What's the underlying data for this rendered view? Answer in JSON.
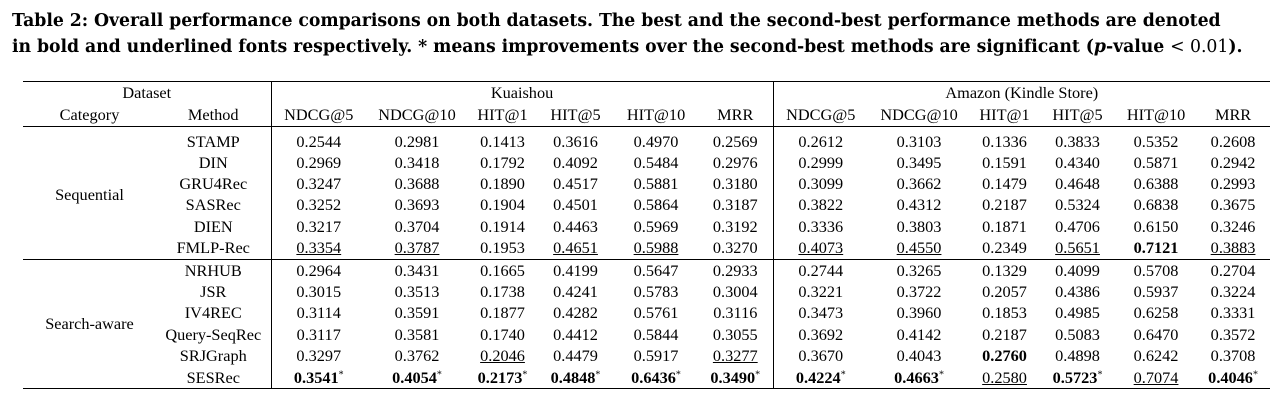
{
  "caption": {
    "label": "Table 2:",
    "text1": "Overall performance comparisons on both datasets. The best and the second-best performance methods are denoted",
    "text2a": "in bold and underlined fonts respectively. * means improvements over the second-best methods are significant (",
    "p": "p",
    "text2b": "-value ",
    "text2c": "< 0.01",
    "text2d": ")."
  },
  "header": {
    "dataset": "Dataset",
    "kuaishou": "Kuaishou",
    "amazon": "Amazon (Kindle Store)",
    "category": "Category",
    "method": "Method",
    "metrics": [
      "NDCG@5",
      "NDCG@10",
      "HIT@1",
      "HIT@5",
      "HIT@10",
      "MRR",
      "NDCG@5",
      "NDCG@10",
      "HIT@1",
      "HIT@5",
      "HIT@10",
      "MRR"
    ]
  },
  "categories": [
    "Sequential",
    "Search-aware"
  ],
  "rows": [
    {
      "method": "STAMP",
      "values": [
        "0.2544",
        "0.2981",
        "0.1413",
        "0.3616",
        "0.4970",
        "0.2569",
        "0.2612",
        "0.3103",
        "0.1336",
        "0.3833",
        "0.5352",
        "0.2608"
      ]
    },
    {
      "method": "DIN",
      "values": [
        "0.2969",
        "0.3418",
        "0.1792",
        "0.4092",
        "0.5484",
        "0.2976",
        "0.2999",
        "0.3495",
        "0.1591",
        "0.4340",
        "0.5871",
        "0.2942"
      ]
    },
    {
      "method": "GRU4Rec",
      "values": [
        "0.3247",
        "0.3688",
        "0.1890",
        "0.4517",
        "0.5881",
        "0.3180",
        "0.3099",
        "0.3662",
        "0.1479",
        "0.4648",
        "0.6388",
        "0.2993"
      ]
    },
    {
      "method": "SASRec",
      "values": [
        "0.3252",
        "0.3693",
        "0.1904",
        "0.4501",
        "0.5864",
        "0.3187",
        "0.3822",
        "0.4312",
        "0.2187",
        "0.5324",
        "0.6838",
        "0.3675"
      ]
    },
    {
      "method": "DIEN",
      "values": [
        "0.3217",
        "0.3704",
        "0.1914",
        "0.4463",
        "0.5969",
        "0.3192",
        "0.3336",
        "0.3803",
        "0.1871",
        "0.4706",
        "0.6150",
        "0.3246"
      ]
    },
    {
      "method": "FMLP-Rec",
      "values": [
        "0.3354",
        "0.3787",
        "0.1953",
        "0.4651",
        "0.5988",
        "0.3270",
        "0.4073",
        "0.4550",
        "0.2349",
        "0.5651",
        "0.7121",
        "0.3883"
      ]
    },
    {
      "method": "NRHUB",
      "values": [
        "0.2964",
        "0.3431",
        "0.1665",
        "0.4199",
        "0.5647",
        "0.2933",
        "0.2744",
        "0.3265",
        "0.1329",
        "0.4099",
        "0.5708",
        "0.2704"
      ]
    },
    {
      "method": "JSR",
      "values": [
        "0.3015",
        "0.3513",
        "0.1738",
        "0.4241",
        "0.5783",
        "0.3004",
        "0.3221",
        "0.3722",
        "0.2057",
        "0.4386",
        "0.5937",
        "0.3224"
      ]
    },
    {
      "method": "IV4REC",
      "values": [
        "0.3114",
        "0.3591",
        "0.1877",
        "0.4282",
        "0.5761",
        "0.3116",
        "0.3473",
        "0.3960",
        "0.1853",
        "0.4985",
        "0.6258",
        "0.3331"
      ]
    },
    {
      "method": "Query-SeqRec",
      "values": [
        "0.3117",
        "0.3581",
        "0.1740",
        "0.4412",
        "0.5844",
        "0.3055",
        "0.3692",
        "0.4142",
        "0.2187",
        "0.5083",
        "0.6470",
        "0.3572"
      ]
    },
    {
      "method": "SRJGraph",
      "values": [
        "0.3297",
        "0.3762",
        "0.2046",
        "0.4479",
        "0.5917",
        "0.3277",
        "0.3670",
        "0.4043",
        "0.2760",
        "0.4898",
        "0.6242",
        "0.3708"
      ]
    },
    {
      "method": "SESRec",
      "values": [
        "0.3541",
        "0.4054",
        "0.2173",
        "0.4848",
        "0.6436",
        "0.3490",
        "0.4224",
        "0.4663",
        "0.2580",
        "0.5723",
        "0.7074",
        "0.4046"
      ]
    }
  ],
  "star": "*"
}
